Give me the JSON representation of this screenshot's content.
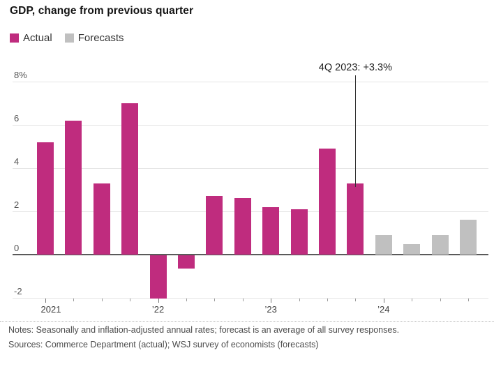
{
  "header": {
    "title": "GDP, change from previous quarter"
  },
  "legend": {
    "items": [
      {
        "label": "Actual",
        "key": "actual"
      },
      {
        "label": "Forecasts",
        "key": "forecast"
      }
    ]
  },
  "annotation": {
    "text": "4Q 2023: +3.3%",
    "target_index": 11
  },
  "chart_data": {
    "type": "bar",
    "title": "GDP, change from previous quarter",
    "unit": "%",
    "grid": true,
    "legend_position": "top-left",
    "ylim": [
      -2.5,
      8.3
    ],
    "categories": [
      "1Q 2021",
      "2Q 2021",
      "3Q 2021",
      "4Q 2021",
      "1Q 2022",
      "2Q 2022",
      "3Q 2022",
      "4Q 2022",
      "1Q 2023",
      "2Q 2023",
      "3Q 2023",
      "4Q 2023",
      "1Q 2024",
      "2Q 2024",
      "3Q 2024",
      "4Q 2024"
    ],
    "series": [
      {
        "name": "Actual",
        "key": "actual",
        "color": "#bf2c7e",
        "values": [
          5.2,
          6.2,
          3.3,
          7.0,
          -2.0,
          -0.6,
          2.7,
          2.6,
          2.2,
          2.1,
          4.9,
          3.3,
          null,
          null,
          null,
          null
        ]
      },
      {
        "name": "Forecasts",
        "key": "forecast",
        "color": "#c0c0c0",
        "values": [
          null,
          null,
          null,
          null,
          null,
          null,
          null,
          null,
          null,
          null,
          null,
          null,
          0.9,
          0.5,
          0.9,
          1.6
        ]
      }
    ],
    "y_ticks": [
      {
        "label": "8%",
        "value": 8
      },
      {
        "label": "6",
        "value": 6
      },
      {
        "label": "4",
        "value": 4
      },
      {
        "label": "2",
        "value": 2
      },
      {
        "label": "0",
        "value": 0
      },
      {
        "label": "-2",
        "value": -2
      }
    ],
    "x_year_ticks": [
      {
        "label": "2021",
        "index": 0
      },
      {
        "label": "’22",
        "index": 4
      },
      {
        "label": "’23",
        "index": 8
      },
      {
        "label": "’24",
        "index": 12
      }
    ],
    "annotation": "4Q 2023: +3.3%"
  },
  "footer": {
    "notes": "Notes: Seasonally and inflation-adjusted annual rates; forecast is an average of all survey responses.",
    "sources": "Sources: Commerce Department (actual); WSJ survey of economists (forecasts)"
  },
  "colors": {
    "actual": "#bf2c7e",
    "forecast": "#c0c0c0",
    "gridline": "#e4e4e4",
    "zero_line": "#5a5a5a",
    "annotation_line": "#333333"
  }
}
